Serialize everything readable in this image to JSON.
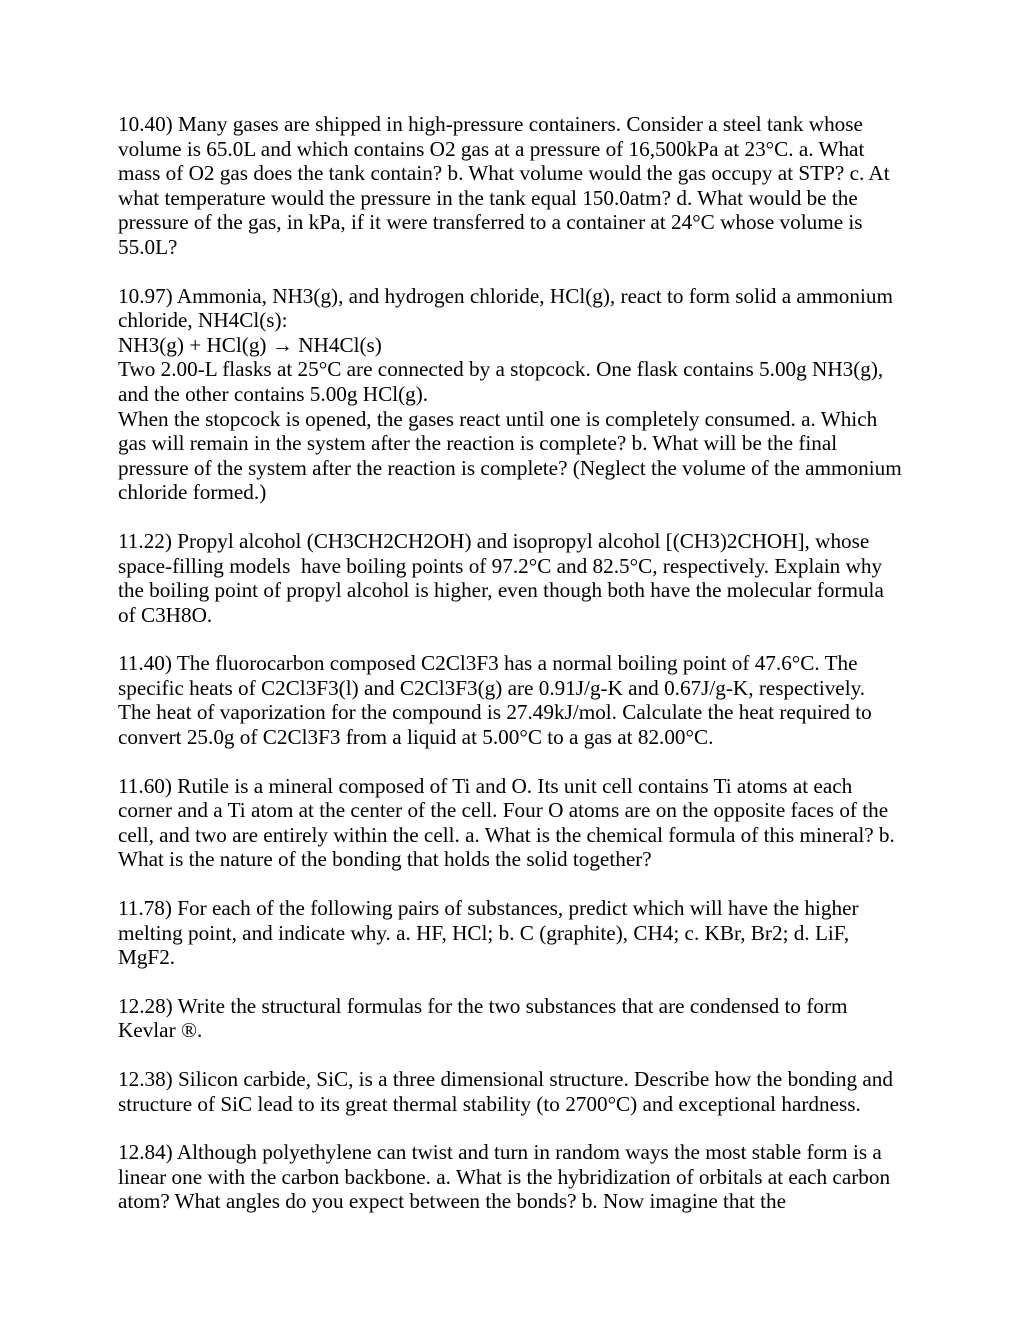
{
  "paragraphs": [
    "10.40) Many gases are shipped in high-pressure containers. Consider a steel tank whose volume is 65.0L and which contains O2 gas at a pressure of 16,500kPa at 23°C. a. What mass of O2 gas does the tank contain? b. What volume would the gas occupy at STP? c. At what temperature would the pressure in the tank equal 150.0atm? d. What would be the pressure of the gas, in kPa, if it were transferred to a container at 24°C whose volume is 55.0L?",
    "10.97) Ammonia, NH3(g), and hydrogen chloride, HCl(g), react to form solid a ammonium chloride, NH4Cl(s):\nNH3(g) + HCl(g) → NH4Cl(s)\nTwo 2.00-L flasks at 25°C are connected by a stopcock. One flask contains 5.00g NH3(g), and the other contains 5.00g HCl(g).\nWhen the stopcock is opened, the gases react until one is completely consumed. a. Which gas will remain in the system after the reaction is complete? b. What will be the final pressure of the system after the reaction is complete? (Neglect the volume of the ammonium chloride formed.)",
    "11.22) Propyl alcohol (CH3CH2CH2OH) and isopropyl alcohol [(CH3)2CHOH], whose space-filling models  have boiling points of 97.2°C and 82.5°C, respectively. Explain why the boiling point of propyl alcohol is higher, even though both have the molecular formula of C3H8O.",
    "11.40) The fluorocarbon composed C2Cl3F3 has a normal boiling point of 47.6°C. The specific heats of C2Cl3F3(l) and C2Cl3F3(g) are 0.91J/g-K and 0.67J/g-K, respectively. The heat of vaporization for the compound is 27.49kJ/mol. Calculate the heat required to convert 25.0g of C2Cl3F3 from a liquid at 5.00°C to a gas at 82.00°C.",
    "11.60) Rutile is a mineral composed of Ti and O. Its unit cell contains Ti atoms at each corner and a Ti atom at the center of the cell. Four O atoms are on the opposite faces of the cell, and two are entirely within the cell. a. What is the chemical formula of this mineral? b. What is the nature of the bonding that holds the solid together?",
    "11.78) For each of the following pairs of substances, predict which will have the higher melting point, and indicate why. a. HF, HCl; b. C (graphite), CH4; c. KBr, Br2; d. LiF, MgF2.",
    "12.28) Write the structural formulas for the two substances that are condensed to form Kevlar ®.",
    "12.38) Silicon carbide, SiC, is a three dimensional structure. Describe how the bonding and structure of SiC lead to its great thermal stability (to 2700°C) and exceptional hardness.",
    "12.84) Although polyethylene can twist and turn in random ways the most stable form is a linear one with the carbon backbone. a. What is the hybridization of orbitals at each carbon atom? What angles do you expect between the bonds? b. Now imagine that the"
  ]
}
